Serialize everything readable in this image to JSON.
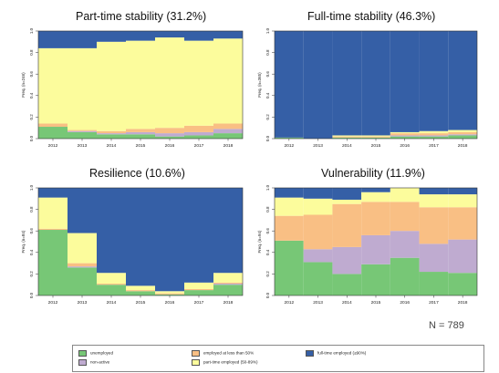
{
  "colors": {
    "unemployed": "#77c776",
    "non_active": "#bfabd0",
    "employed_lt50": "#f9bf84",
    "part_time": "#fcfc9c",
    "full_time": "#355fa6"
  },
  "chart_data": [
    {
      "type": "bar",
      "stacked": true,
      "title_main": "Part-time stability",
      "title_pct": "(31.2%)",
      "ylabel": "Freq. (n=246)",
      "categories": [
        "2012",
        "2013",
        "2014",
        "2015",
        "2016",
        "2017",
        "2018"
      ],
      "ylim": [
        0,
        1
      ],
      "yticks": [
        "0.0",
        "0.2",
        "0.4",
        "0.6",
        "0.8",
        "1.0"
      ],
      "series": [
        {
          "key": "unemployed",
          "values": [
            0.11,
            0.06,
            0.04,
            0.04,
            0.02,
            0.03,
            0.05
          ]
        },
        {
          "key": "non_active",
          "values": [
            0.0,
            0.01,
            0.01,
            0.02,
            0.03,
            0.03,
            0.04
          ]
        },
        {
          "key": "employed_lt50",
          "values": [
            0.03,
            0.01,
            0.02,
            0.03,
            0.05,
            0.06,
            0.05
          ]
        },
        {
          "key": "part_time",
          "values": [
            0.7,
            0.76,
            0.83,
            0.82,
            0.84,
            0.79,
            0.79
          ]
        },
        {
          "key": "full_time",
          "values": [
            0.16,
            0.16,
            0.1,
            0.09,
            0.06,
            0.09,
            0.07
          ]
        }
      ]
    },
    {
      "type": "bar",
      "stacked": true,
      "title_main": "Full-time stability",
      "title_pct": "(46.3%)",
      "ylabel": "Freq. (n=365)",
      "categories": [
        "2012",
        "2013",
        "2014",
        "2015",
        "2016",
        "2017",
        "2018"
      ],
      "ylim": [
        0,
        1
      ],
      "yticks": [
        "0.0",
        "0.2",
        "0.4",
        "0.6",
        "0.8",
        "1.0"
      ],
      "series": [
        {
          "key": "unemployed",
          "values": [
            0.01,
            0.0,
            0.01,
            0.01,
            0.02,
            0.02,
            0.03
          ]
        },
        {
          "key": "non_active",
          "values": [
            0.0,
            0.0,
            0.0,
            0.0,
            0.01,
            0.01,
            0.01
          ]
        },
        {
          "key": "employed_lt50",
          "values": [
            0.0,
            0.0,
            0.01,
            0.01,
            0.02,
            0.02,
            0.02
          ]
        },
        {
          "key": "part_time",
          "values": [
            0.0,
            0.0,
            0.01,
            0.01,
            0.01,
            0.02,
            0.02
          ]
        },
        {
          "key": "full_time",
          "values": [
            0.99,
            1.0,
            0.97,
            0.97,
            0.94,
            0.93,
            0.92
          ]
        }
      ]
    },
    {
      "type": "bar",
      "stacked": true,
      "title_main": "Resilience",
      "title_pct": "(10.6%)",
      "ylabel": "Freq. (n=84)",
      "categories": [
        "2012",
        "2013",
        "2014",
        "2015",
        "2016",
        "2017",
        "2018"
      ],
      "ylim": [
        0,
        1
      ],
      "yticks": [
        "0.0",
        "0.2",
        "0.4",
        "0.6",
        "0.8",
        "1.0"
      ],
      "series": [
        {
          "key": "unemployed",
          "values": [
            0.61,
            0.26,
            0.1,
            0.04,
            0.01,
            0.05,
            0.1
          ]
        },
        {
          "key": "non_active",
          "values": [
            0.0,
            0.01,
            0.0,
            0.0,
            0.0,
            0.0,
            0.01
          ]
        },
        {
          "key": "employed_lt50",
          "values": [
            0.01,
            0.03,
            0.01,
            0.01,
            0.01,
            0.01,
            0.01
          ]
        },
        {
          "key": "part_time",
          "values": [
            0.29,
            0.28,
            0.1,
            0.04,
            0.02,
            0.06,
            0.09
          ]
        },
        {
          "key": "full_time",
          "values": [
            0.09,
            0.42,
            0.79,
            0.91,
            0.96,
            0.88,
            0.79
          ]
        }
      ]
    },
    {
      "type": "bar",
      "stacked": true,
      "title_main": "Vulnerability",
      "title_pct": "(11.9%)",
      "ylabel": "Freq. (n=94)",
      "categories": [
        "2012",
        "2013",
        "2014",
        "2015",
        "2016",
        "2017",
        "2018"
      ],
      "ylim": [
        0,
        1
      ],
      "yticks": [
        "0.0",
        "0.2",
        "0.4",
        "0.6",
        "0.8",
        "1.0"
      ],
      "series": [
        {
          "key": "unemployed",
          "values": [
            0.51,
            0.31,
            0.2,
            0.29,
            0.35,
            0.22,
            0.21
          ]
        },
        {
          "key": "non_active",
          "values": [
            0.0,
            0.12,
            0.25,
            0.27,
            0.25,
            0.26,
            0.31
          ]
        },
        {
          "key": "employed_lt50",
          "values": [
            0.23,
            0.32,
            0.4,
            0.31,
            0.27,
            0.34,
            0.3
          ]
        },
        {
          "key": "part_time",
          "values": [
            0.17,
            0.15,
            0.04,
            0.09,
            0.13,
            0.12,
            0.12
          ]
        },
        {
          "key": "full_time",
          "values": [
            0.09,
            0.1,
            0.11,
            0.04,
            0.0,
            0.06,
            0.06
          ]
        }
      ]
    }
  ],
  "n_label": "N = 789",
  "legend": [
    {
      "key": "unemployed",
      "label": "unemployed"
    },
    {
      "key": "non_active",
      "label": "non-active"
    },
    {
      "key": "employed_lt50",
      "label": "employed at less than 50%"
    },
    {
      "key": "part_time",
      "label": "part-time employed (50-89%)"
    },
    {
      "key": "full_time",
      "label": "full-time employed (≥90%)"
    }
  ]
}
